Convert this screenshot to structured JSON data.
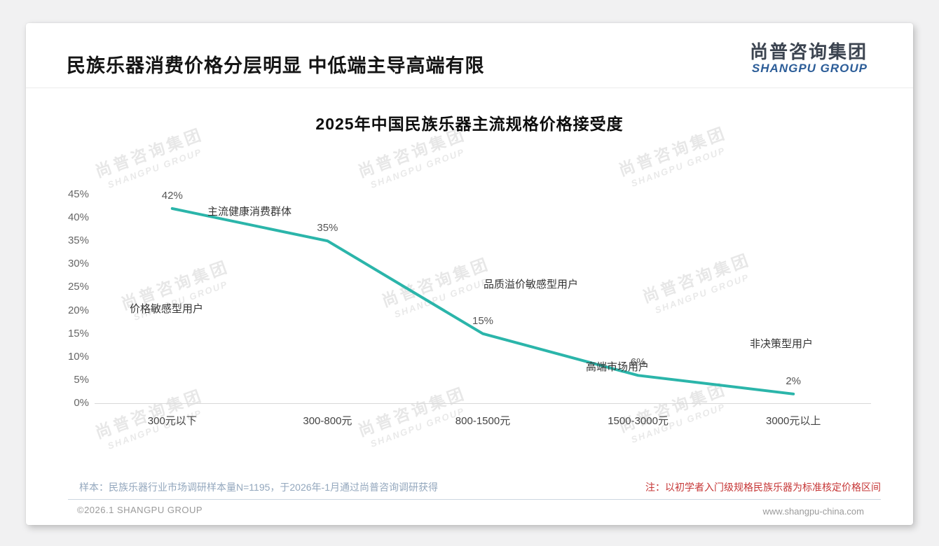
{
  "header": {
    "title": "民族乐器消费价格分层明显 中低端主导高端有限",
    "logo_cn": "尚普咨询集团",
    "logo_en": "SHANGPU GROUP"
  },
  "watermark": {
    "line1": "尚普咨询集团",
    "line2": "SHANGPU GROUP"
  },
  "chart_data": {
    "type": "line",
    "title": "2025年中国民族乐器主流规格价格接受度",
    "categories": [
      "300元以下",
      "300-800元",
      "800-1500元",
      "1500-3000元",
      "3000元以上"
    ],
    "values": [
      42,
      35,
      15,
      6,
      2
    ],
    "data_labels": [
      "42%",
      "35%",
      "15%",
      "6%",
      "2%"
    ],
    "y_tick_labels": [
      "45%",
      "40%",
      "35%",
      "30%",
      "25%",
      "20%",
      "15%",
      "10%",
      "5%",
      "0%"
    ],
    "ylim": [
      0,
      45
    ],
    "xlabel": "",
    "ylabel": "",
    "grid": false,
    "legend": false,
    "annotations": [
      "主流健康消费群体",
      "价格敏感型用户",
      "品质溢价敏感型用户",
      "高端市场用户",
      "非决策型用户"
    ],
    "colors": {
      "line": "#2bb5aa",
      "note_red": "#c63636",
      "logo_blue": "#2c5d98"
    }
  },
  "footer": {
    "sample_note": "样本：民族乐器行业市场调研样本量N=1195，于2026年-1月通过尚普咨询调研获得",
    "note": "注：以初学者入门级规格民族乐器为标准核定价格区间",
    "copyright": "©2026.1 SHANGPU GROUP",
    "website": "www.shangpu-china.com"
  }
}
